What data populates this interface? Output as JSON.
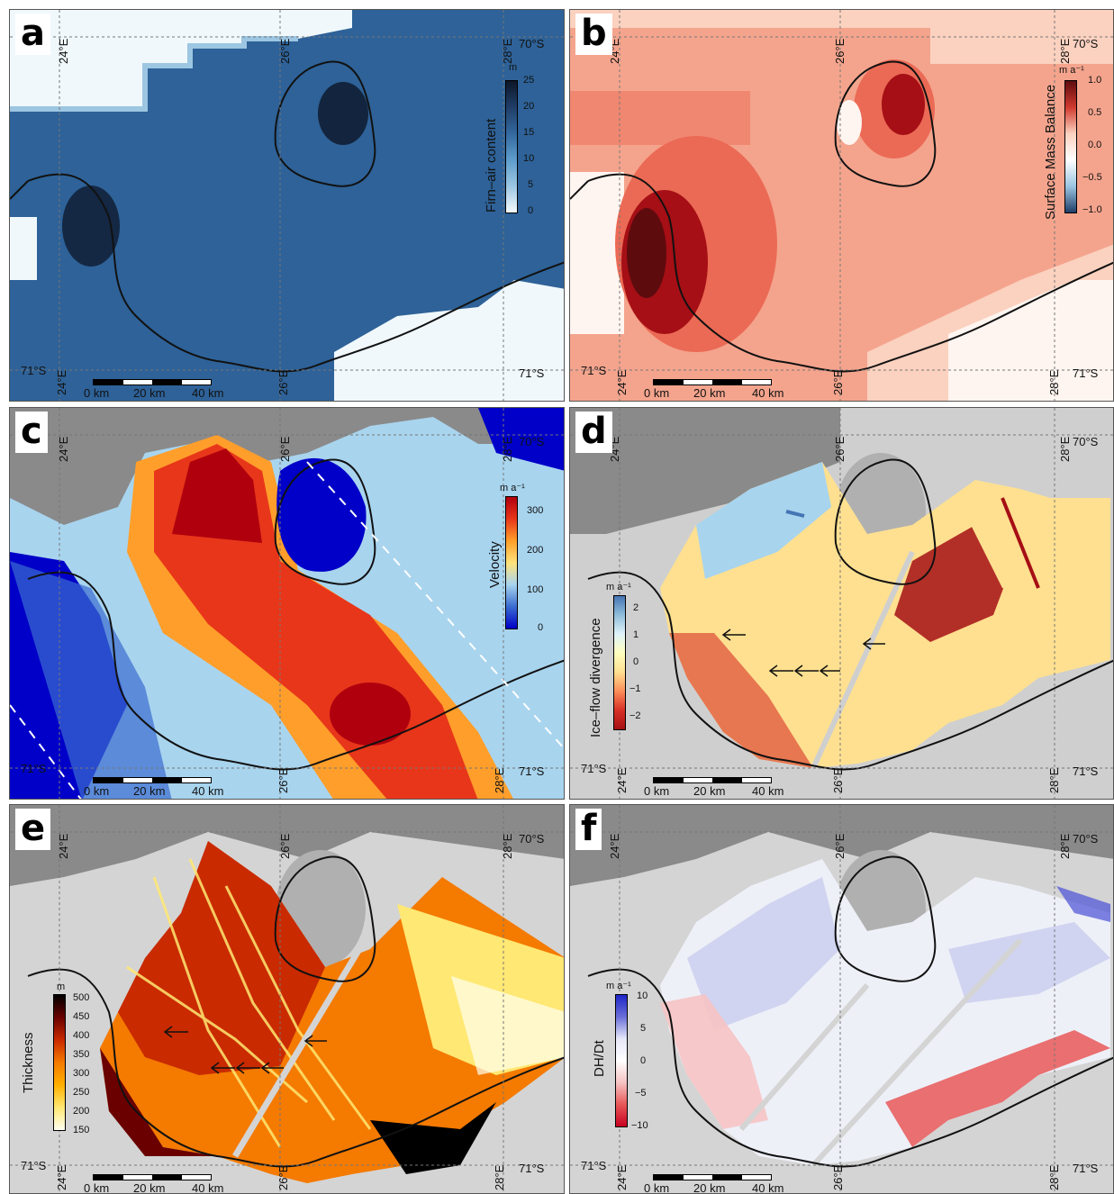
{
  "panels": [
    {
      "letter": "a",
      "colorbar": {
        "title": "Firn–air content",
        "unit": "m",
        "ticks": [
          "25",
          "20",
          "15",
          "10",
          "5",
          "0"
        ]
      }
    },
    {
      "letter": "b",
      "colorbar": {
        "title": "Surface Mass Balance",
        "unit": "m a⁻¹",
        "ticks": [
          "1.0",
          "0.5",
          "0.0",
          "−0.5",
          "−1.0"
        ]
      }
    },
    {
      "letter": "c",
      "colorbar": {
        "title": "Velocity",
        "unit": "m a⁻¹",
        "ticks": [
          "300",
          "200",
          "100",
          "0"
        ]
      }
    },
    {
      "letter": "d",
      "colorbar": {
        "title": "Ice–flow divergence",
        "unit": "m a⁻¹",
        "ticks": [
          "2",
          "1",
          "0",
          "−1",
          "−2"
        ]
      }
    },
    {
      "letter": "e",
      "colorbar": {
        "title": "Thickness",
        "unit": "m",
        "ticks": [
          "500",
          "450",
          "400",
          "350",
          "300",
          "250",
          "200",
          "150"
        ]
      }
    },
    {
      "letter": "f",
      "colorbar": {
        "title": "DH/Dt",
        "unit": "m a⁻¹",
        "ticks": [
          "10",
          "5",
          "0",
          "−5",
          "−10"
        ]
      }
    }
  ],
  "coords": {
    "lon24": "24°E",
    "lon26": "26°E",
    "lon28": "28°E",
    "lat70": "70°S",
    "lat71": "71°S"
  },
  "scalebar": {
    "l0": "0 km",
    "l20": "20 km",
    "l40": "40 km"
  },
  "colors": {
    "blues": [
      "#f4fafd",
      "#d6e9f4",
      "#9cc6e2",
      "#5e9dcc",
      "#33699f",
      "#203e68",
      "#0c1628"
    ],
    "reds": [
      "#fff5f0",
      "#fbd1bf",
      "#f4a48d",
      "#eb6a55",
      "#d03a2e",
      "#a50f15",
      "#5e0b0e"
    ],
    "diverging": [
      "#d73027",
      "#fc8d59",
      "#fee090",
      "#ffffbf",
      "#e0f3f8",
      "#91bfdb",
      "#4575b4"
    ],
    "hot": [
      "#fffff0",
      "#ffe873",
      "#ffb000",
      "#f47a00",
      "#c92a00",
      "#6a0000",
      "#000000"
    ],
    "velocity": [
      "#0000c8",
      "#3a6cd0",
      "#a8d4ee",
      "#ffe37a",
      "#ff9e2a",
      "#e8361a",
      "#b0000e"
    ],
    "coastline": "#111111",
    "grey": "#b5b5b5"
  }
}
